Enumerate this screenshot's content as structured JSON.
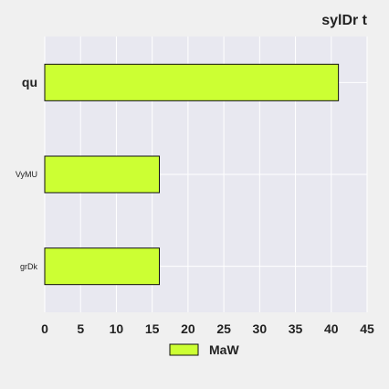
{
  "chart_data": {
    "type": "bar",
    "orientation": "horizontal",
    "title": "sylDr t",
    "xlabel": "",
    "ylabel": "",
    "categories": [
      "qu",
      "VyMU",
      "grDk"
    ],
    "series": [
      {
        "name": "MaW",
        "values": [
          41,
          16,
          16
        ]
      }
    ],
    "xlim": [
      0,
      45
    ],
    "xticks": [
      0,
      5,
      10,
      15,
      20,
      25,
      30,
      35,
      40,
      45
    ],
    "grid": true,
    "legend_position": "bottom-center",
    "colors": {
      "bar_fill": "#ccff33",
      "bar_stroke": "#111111",
      "plot_background": "#e8e8f0",
      "page_background": "#f0f0f0",
      "grid": "#ffffff"
    }
  }
}
